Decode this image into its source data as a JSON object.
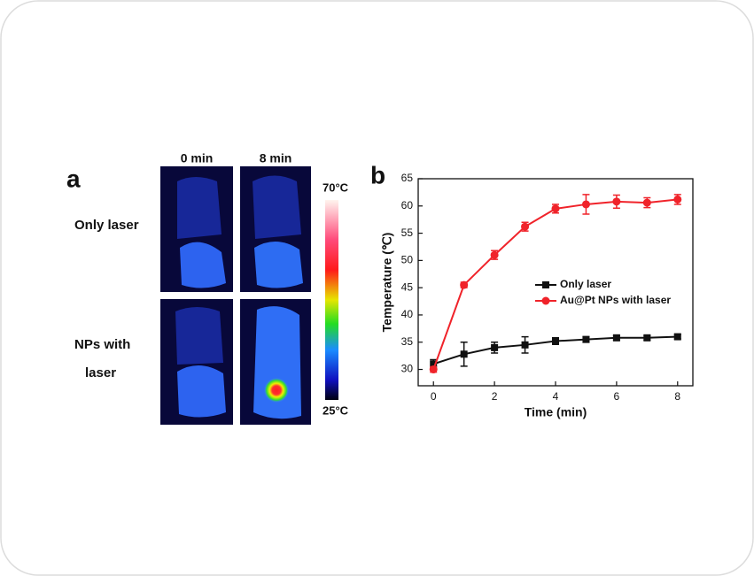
{
  "panel_a": {
    "label": "a",
    "columns": [
      "0 min",
      "8 min"
    ],
    "rows": [
      "Only laser",
      [
        "NPs with",
        "laser"
      ]
    ],
    "colorbar": {
      "max_label": "70°C",
      "min_label": "25°C"
    }
  },
  "chart_data": {
    "type": "line",
    "panel_label": "b",
    "x_label": "Time (min)",
    "y_label": "Temperature (℃)",
    "x": [
      0,
      1,
      2,
      3,
      4,
      5,
      6,
      7,
      8
    ],
    "series": [
      {
        "name": "Only laser",
        "color": "#111111",
        "marker": "square",
        "values": [
          31.0,
          32.8,
          34.0,
          34.5,
          35.2,
          35.5,
          35.8,
          35.8,
          36.0
        ],
        "errors": [
          0.8,
          2.2,
          1.0,
          1.5,
          0.6,
          0.5,
          0.4,
          0.4,
          0.4
        ]
      },
      {
        "name": "Au@Pt NPs with laser",
        "color": "#f0232a",
        "marker": "circle",
        "values": [
          30.0,
          45.5,
          51.0,
          56.2,
          59.5,
          60.3,
          60.8,
          60.6,
          61.2
        ],
        "errors": [
          0.5,
          0.5,
          0.8,
          0.8,
          0.8,
          1.8,
          1.2,
          0.9,
          0.9
        ]
      }
    ],
    "xlim": [
      -0.5,
      8.5
    ],
    "ylim": [
      27,
      65
    ],
    "xticks": [
      0,
      2,
      4,
      6,
      8
    ],
    "yticks": [
      30,
      35,
      40,
      45,
      50,
      55,
      60,
      65
    ]
  }
}
